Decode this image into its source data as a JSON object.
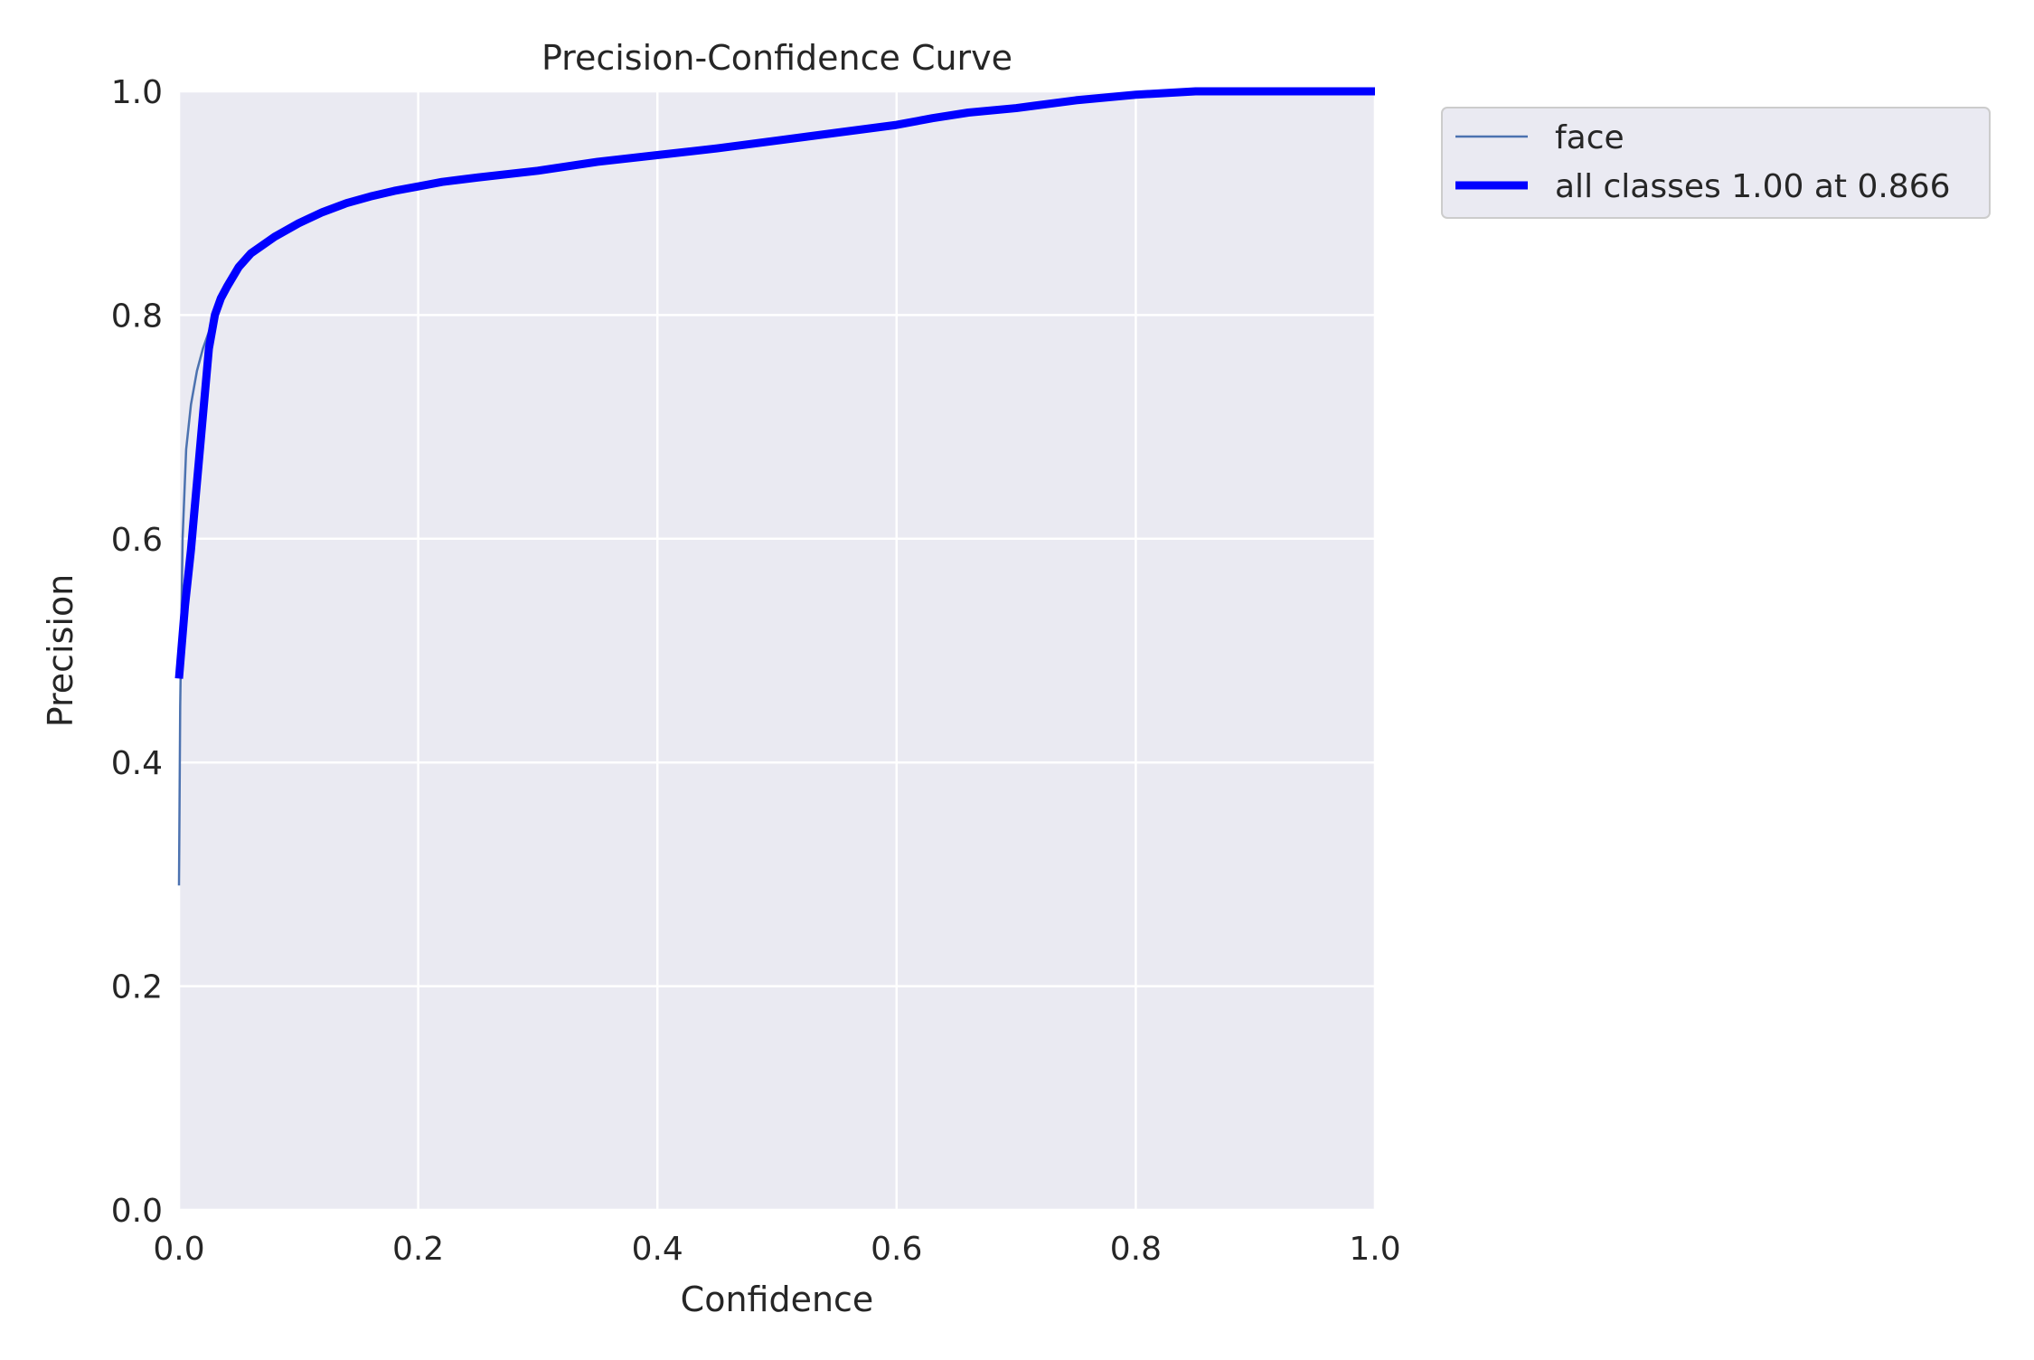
{
  "chart_data": {
    "type": "line",
    "title": "Precision-Confidence Curve",
    "xlabel": "Confidence",
    "ylabel": "Precision",
    "xlim": [
      0,
      1
    ],
    "ylim": [
      0,
      1
    ],
    "xticks": [
      "0.0",
      "0.2",
      "0.4",
      "0.6",
      "0.8",
      "1.0"
    ],
    "yticks": [
      "0.0",
      "0.2",
      "0.4",
      "0.6",
      "0.8",
      "1.0"
    ],
    "grid": true,
    "legend_position": "outside-top-right",
    "colors": {
      "plot_background": "#eaeaf2",
      "grid": "#ffffff",
      "text": "#262626",
      "face": "#4c72b0",
      "all_classes": "#0000ff"
    },
    "series": [
      {
        "name": "face",
        "x": [
          0.0,
          0.001,
          0.003,
          0.006,
          0.01,
          0.015,
          0.02,
          0.03,
          0.04,
          0.05,
          0.06,
          0.08,
          0.1,
          0.12,
          0.14,
          0.16,
          0.18,
          0.2,
          0.22,
          0.25,
          0.3,
          0.35,
          0.4,
          0.45,
          0.5,
          0.55,
          0.6,
          0.63,
          0.66,
          0.7,
          0.75,
          0.8,
          0.85,
          0.866,
          0.9,
          1.0
        ],
        "y": [
          0.29,
          0.45,
          0.6,
          0.68,
          0.72,
          0.75,
          0.77,
          0.8,
          0.83,
          0.845,
          0.855,
          0.87,
          0.882,
          0.892,
          0.9,
          0.906,
          0.911,
          0.915,
          0.919,
          0.923,
          0.929,
          0.937,
          0.943,
          0.949,
          0.956,
          0.963,
          0.97,
          0.976,
          0.981,
          0.985,
          0.992,
          0.997,
          1.0,
          1.0,
          1.0,
          1.0
        ]
      },
      {
        "name": "all classes 1.00 at 0.866",
        "x": [
          0.0,
          0.005,
          0.01,
          0.015,
          0.02,
          0.025,
          0.03,
          0.035,
          0.04,
          0.05,
          0.06,
          0.08,
          0.1,
          0.12,
          0.14,
          0.16,
          0.18,
          0.2,
          0.22,
          0.25,
          0.3,
          0.35,
          0.4,
          0.45,
          0.5,
          0.55,
          0.6,
          0.63,
          0.66,
          0.7,
          0.75,
          0.8,
          0.85,
          0.866,
          0.9,
          1.0
        ],
        "y": [
          0.475,
          0.54,
          0.59,
          0.65,
          0.71,
          0.77,
          0.8,
          0.815,
          0.825,
          0.843,
          0.855,
          0.87,
          0.882,
          0.892,
          0.9,
          0.906,
          0.911,
          0.915,
          0.919,
          0.923,
          0.929,
          0.937,
          0.943,
          0.949,
          0.956,
          0.963,
          0.97,
          0.976,
          0.981,
          0.985,
          0.992,
          0.997,
          1.0,
          1.0,
          1.0,
          1.0
        ]
      }
    ]
  }
}
